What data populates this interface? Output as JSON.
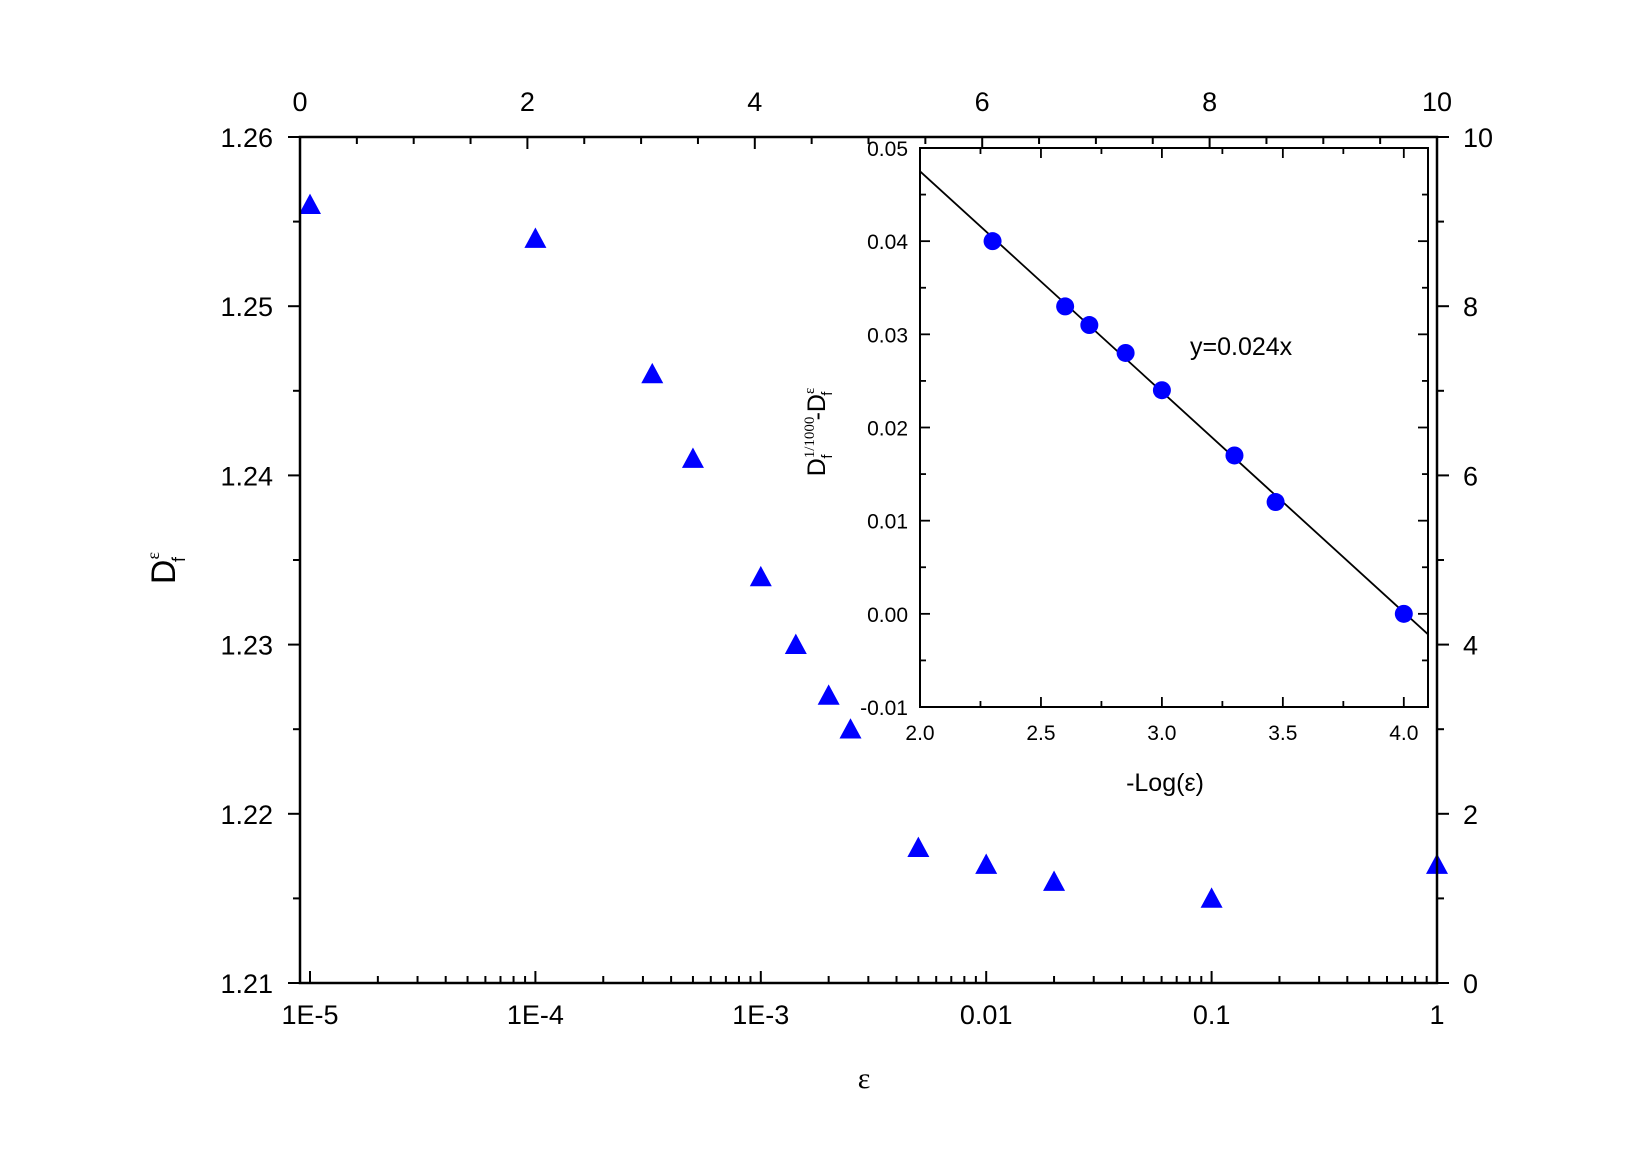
{
  "chart_data": [
    {
      "type": "scatter",
      "x_scale": "log",
      "xlim": [
        1e-05,
        1
      ],
      "ylim": [
        1.21,
        1.26
      ],
      "xlabel": "ε",
      "ylabel": "D",
      "ylabel_sup": "ε",
      "ylabel_sub": "f",
      "x_tick_values": [
        1e-05,
        0.0001,
        0.001,
        0.01,
        0.1,
        1
      ],
      "x_tick_labels": [
        "1E-5",
        "1E-4",
        "1E-3",
        "0.01",
        "0.1",
        "1"
      ],
      "y_tick_values": [
        1.21,
        1.22,
        1.23,
        1.24,
        1.25,
        1.26
      ],
      "y_tick_labels": [
        "1.21",
        "1.22",
        "1.23",
        "1.24",
        "1.25",
        "1.26"
      ],
      "top_axis": {
        "range": [
          0,
          10
        ],
        "tick_values": [
          0,
          2,
          4,
          6,
          8,
          10
        ],
        "tick_labels": [
          "0",
          "2",
          "4",
          "6",
          "8",
          "10"
        ]
      },
      "right_axis": {
        "range": [
          0,
          10
        ],
        "tick_values": [
          0,
          2,
          4,
          6,
          8,
          10
        ],
        "tick_labels": [
          "0",
          "2",
          "4",
          "6",
          "8",
          "10"
        ]
      },
      "marker": "triangle",
      "marker_color": "#0000ff",
      "points": [
        {
          "x": 1e-05,
          "y": 1.256
        },
        {
          "x": 0.0001,
          "y": 1.254
        },
        {
          "x": 0.00033,
          "y": 1.246
        },
        {
          "x": 0.0005,
          "y": 1.241
        },
        {
          "x": 0.001,
          "y": 1.234
        },
        {
          "x": 0.00143,
          "y": 1.23
        },
        {
          "x": 0.002,
          "y": 1.227
        },
        {
          "x": 0.0025,
          "y": 1.225
        },
        {
          "x": 0.005,
          "y": 1.218
        },
        {
          "x": 0.01,
          "y": 1.217
        },
        {
          "x": 0.02,
          "y": 1.216
        },
        {
          "x": 0.1,
          "y": 1.215
        },
        {
          "x": 1,
          "y": 1.217
        }
      ]
    },
    {
      "type": "scatter",
      "inset": true,
      "xlim": [
        2.0,
        4.1
      ],
      "ylim": [
        -0.01,
        0.05
      ],
      "xlabel": "-Log(ε)",
      "ylabel_main": "D",
      "ylabel_sup1": "1/1000",
      "ylabel_sub": "f",
      "ylabel_mid": "-D",
      "ylabel_sup2": "ε",
      "x_tick_values": [
        2.0,
        2.5,
        3.0,
        3.5,
        4.0
      ],
      "x_tick_labels": [
        "2.0",
        "2.5",
        "3.0",
        "3.5",
        "4.0"
      ],
      "y_tick_values": [
        -0.01,
        0.0,
        0.01,
        0.02,
        0.03,
        0.04,
        0.05
      ],
      "y_tick_labels": [
        "-0.01",
        "0.00",
        "0.01",
        "0.02",
        "0.03",
        "0.04",
        "0.05"
      ],
      "marker": "circle",
      "marker_color": "#0000ff",
      "points": [
        {
          "x": 2.3,
          "y": 0.04
        },
        {
          "x": 2.6,
          "y": 0.033
        },
        {
          "x": 2.7,
          "y": 0.031
        },
        {
          "x": 2.85,
          "y": 0.028
        },
        {
          "x": 3.0,
          "y": 0.024
        },
        {
          "x": 3.3,
          "y": 0.017
        },
        {
          "x": 3.47,
          "y": 0.012
        },
        {
          "x": 4.0,
          "y": 0.0
        }
      ],
      "fit_line": {
        "x": [
          2.0,
          4.1
        ],
        "y": [
          0.0475,
          -0.0022
        ]
      },
      "annotation": "y=0.024x"
    }
  ]
}
